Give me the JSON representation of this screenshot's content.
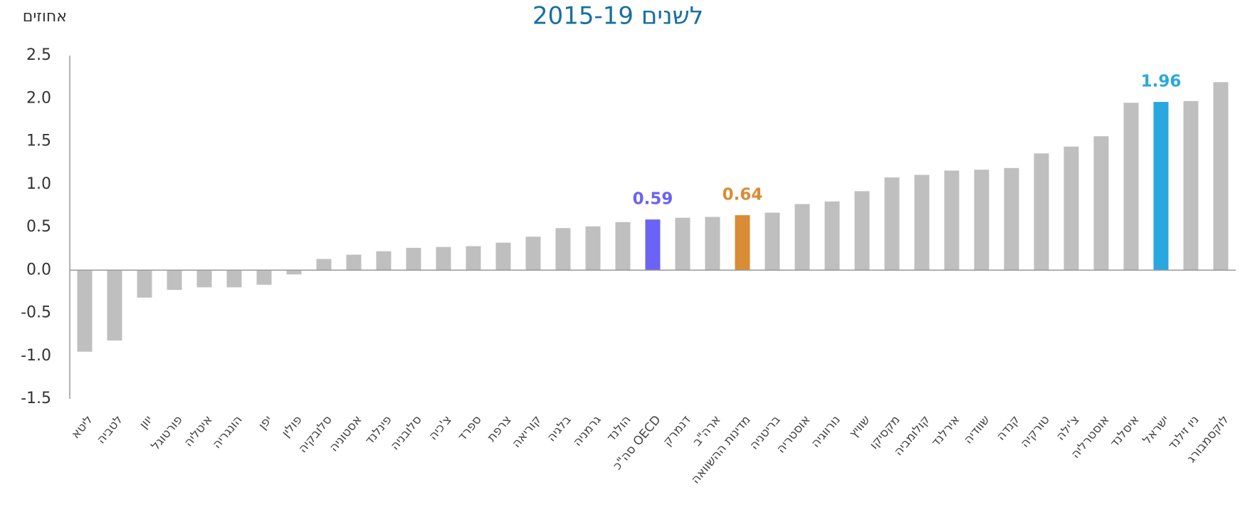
{
  "chart_data": {
    "type": "bar",
    "title": "לשנים 2015-19",
    "y_axis_label": "אחוזים",
    "categories": [
      "ליטא",
      "לטביה",
      "יוון",
      "פורטוגל",
      "איטליה",
      "הונגריה",
      "יפן",
      "פולין",
      "סלובקיה",
      "אסטוניה",
      "פינלנד",
      "סלובניה",
      "צ'כיה",
      "ספרד",
      "צרפת",
      "קוריאה",
      "בלגיה",
      "גרמניה",
      "הולנד",
      "סה\"כ OECD",
      "דנמרק",
      "ארה\"ב",
      "מדינות ההשוואה",
      "בריטניה",
      "אוסטריה",
      "נורווגיה",
      "שוויץ",
      "מקסיקו",
      "קולומביה",
      "אירלנד",
      "שוודיה",
      "קנדה",
      "טורקיה",
      "צ'ילה",
      "אוסטרליה",
      "איסלנד",
      "ישראל",
      "ניו זילנד",
      "לוקסמבורג"
    ],
    "values": [
      -0.95,
      -0.82,
      -0.32,
      -0.23,
      -0.2,
      -0.2,
      -0.17,
      -0.05,
      0.13,
      0.18,
      0.22,
      0.26,
      0.27,
      0.28,
      0.32,
      0.39,
      0.49,
      0.51,
      0.56,
      0.59,
      0.61,
      0.62,
      0.64,
      0.67,
      0.77,
      0.8,
      0.92,
      1.08,
      1.11,
      1.16,
      1.17,
      1.19,
      1.36,
      1.44,
      1.56,
      1.95,
      1.96,
      1.97,
      2.19
    ],
    "colors": [
      "#bfbfbf",
      "#bfbfbf",
      "#bfbfbf",
      "#bfbfbf",
      "#bfbfbf",
      "#bfbfbf",
      "#bfbfbf",
      "#bfbfbf",
      "#bfbfbf",
      "#bfbfbf",
      "#bfbfbf",
      "#bfbfbf",
      "#bfbfbf",
      "#bfbfbf",
      "#bfbfbf",
      "#bfbfbf",
      "#bfbfbf",
      "#bfbfbf",
      "#bfbfbf",
      "#6b63f5",
      "#bfbfbf",
      "#bfbfbf",
      "#d98c35",
      "#bfbfbf",
      "#bfbfbf",
      "#bfbfbf",
      "#bfbfbf",
      "#bfbfbf",
      "#bfbfbf",
      "#bfbfbf",
      "#bfbfbf",
      "#bfbfbf",
      "#bfbfbf",
      "#bfbfbf",
      "#bfbfbf",
      "#bfbfbf",
      "#29a8e0",
      "#bfbfbf",
      "#bfbfbf"
    ],
    "value_labels": [
      null,
      null,
      null,
      null,
      null,
      null,
      null,
      null,
      null,
      null,
      null,
      null,
      null,
      null,
      null,
      null,
      null,
      null,
      null,
      "0.59",
      null,
      null,
      "0.64",
      null,
      null,
      null,
      null,
      null,
      null,
      null,
      null,
      null,
      null,
      null,
      null,
      null,
      "1.96",
      null,
      null
    ],
    "ylim": [
      -1.5,
      2.5
    ],
    "yticks": [
      {
        "value": 2.5,
        "label": "2.5"
      },
      {
        "value": 2,
        "label": "2.0"
      },
      {
        "value": 1.5,
        "label": "1.5"
      },
      {
        "value": 1,
        "label": "1.0"
      },
      {
        "value": 0.5,
        "label": "0.5"
      },
      {
        "value": 0,
        "label": "0.0"
      },
      {
        "value": -0.5,
        "label": "-0.5"
      },
      {
        "value": -1,
        "label": "-1.0"
      },
      {
        "value": -1.5,
        "label": "-1.5"
      }
    ],
    "grid": false
  }
}
